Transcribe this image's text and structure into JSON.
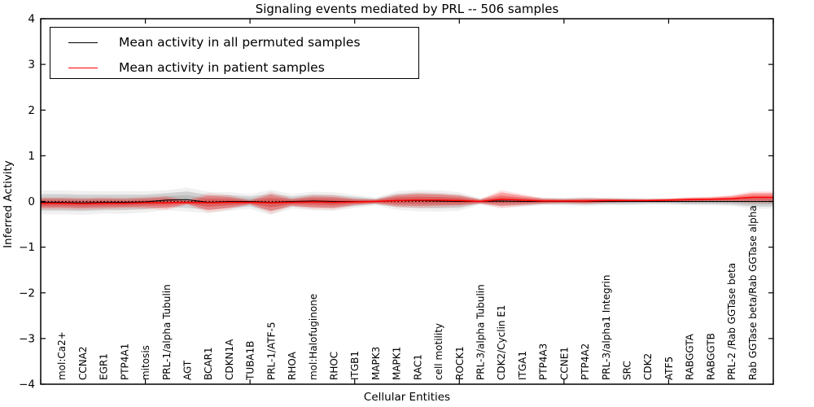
{
  "title": "Signaling events mediated by PRL -- 506 samples",
  "legend": {
    "items": [
      {
        "label": "Mean activity in all permuted samples",
        "color": "#000000"
      },
      {
        "label": "Mean activity in patient samples",
        "color": "#ff0000"
      }
    ]
  },
  "chart_data": {
    "type": "area",
    "title": "Signaling events mediated by PRL -- 506 samples",
    "xlabel": "Cellular Entities",
    "ylabel": "Inferred Activity",
    "ylim": [
      -4,
      4
    ],
    "yticks": [
      -4,
      -3,
      -2,
      -1,
      0,
      1,
      2,
      3,
      4
    ],
    "xticks_unlabeled": [
      0,
      5,
      10,
      15,
      20,
      25,
      30,
      35
    ],
    "grid": false,
    "legend_position": "upper left",
    "zero_line": {
      "value": 0,
      "style": "dotted",
      "color": "#000000"
    },
    "categories": [
      "mol:Ca2+",
      "CCNA2",
      "EGR1",
      "PTP4A1",
      "mitosis",
      "PRL-1/alpha Tubulin",
      "AGT",
      "BCAR1",
      "CDKN1A",
      "TUBA1B",
      "PRL-1/ATF-5",
      "RHOA",
      "mol:Halofuginone",
      "RHOC",
      "ITGB1",
      "MAPK3",
      "MAPK1",
      "RAC1",
      "cell motility",
      "ROCK1",
      "PRL-3/alpha Tubulin",
      "CDK2/Cyclin E1",
      "ITGA1",
      "PTP4A3",
      "CCNE1",
      "PTP4A2",
      "PRL-3/alpha1 Integrin",
      "SRC",
      "CDK2",
      "ATF5",
      "RABGGTA",
      "RABGGTB",
      "PRL-2 /Rab GGTase beta",
      "Rab GGTase beta/Rab GGTase alpha"
    ],
    "series": [
      {
        "name": "Mean activity in all permuted samples",
        "kind": "line",
        "color": "#000000",
        "values": [
          -0.02,
          -0.03,
          -0.02,
          -0.02,
          -0.01,
          0.03,
          0.04,
          -0.02,
          0.0,
          0.0,
          -0.02,
          0.0,
          0.01,
          0.0,
          0.0,
          0.0,
          0.02,
          0.02,
          0.01,
          0.0,
          0.0,
          0.01,
          0.0,
          0.0,
          0.0,
          0.0,
          0.0,
          0.0,
          0.0,
          0.0,
          0.0,
          0.0,
          0.0,
          0.0
        ]
      },
      {
        "name": "Mean activity in patient samples",
        "kind": "line",
        "color": "#ff0000",
        "values": [
          -0.04,
          -0.05,
          -0.04,
          -0.04,
          -0.03,
          -0.03,
          -0.02,
          -0.03,
          -0.02,
          -0.02,
          -0.03,
          -0.02,
          -0.01,
          -0.02,
          -0.01,
          0.0,
          0.02,
          0.03,
          0.03,
          0.02,
          0.0,
          0.05,
          0.03,
          0.01,
          0.01,
          0.01,
          0.02,
          0.02,
          0.02,
          0.03,
          0.04,
          0.05,
          0.06,
          0.09
        ]
      },
      {
        "name": "Permuted samples spread (half-width around permuted mean)",
        "kind": "band",
        "center_series": 0,
        "color": "#000000",
        "half_widths": [
          0.18,
          0.18,
          0.17,
          0.17,
          0.16,
          0.15,
          0.18,
          0.16,
          0.14,
          0.11,
          0.19,
          0.11,
          0.14,
          0.14,
          0.1,
          0.06,
          0.14,
          0.16,
          0.16,
          0.14,
          0.05,
          0.1,
          0.08,
          0.06,
          0.06,
          0.07,
          0.06,
          0.06,
          0.05,
          0.05,
          0.06,
          0.06,
          0.07,
          0.11
        ]
      },
      {
        "name": "Patient samples spread (half-width around patient mean)",
        "kind": "band",
        "center_series": 1,
        "color": "#ff0000",
        "half_widths": [
          0.1,
          0.1,
          0.1,
          0.09,
          0.1,
          0.12,
          0.04,
          0.16,
          0.12,
          0.04,
          0.18,
          0.07,
          0.12,
          0.12,
          0.06,
          0.04,
          0.11,
          0.13,
          0.12,
          0.1,
          0.04,
          0.15,
          0.1,
          0.05,
          0.04,
          0.05,
          0.04,
          0.03,
          0.03,
          0.03,
          0.04,
          0.04,
          0.06,
          0.1
        ]
      }
    ]
  }
}
